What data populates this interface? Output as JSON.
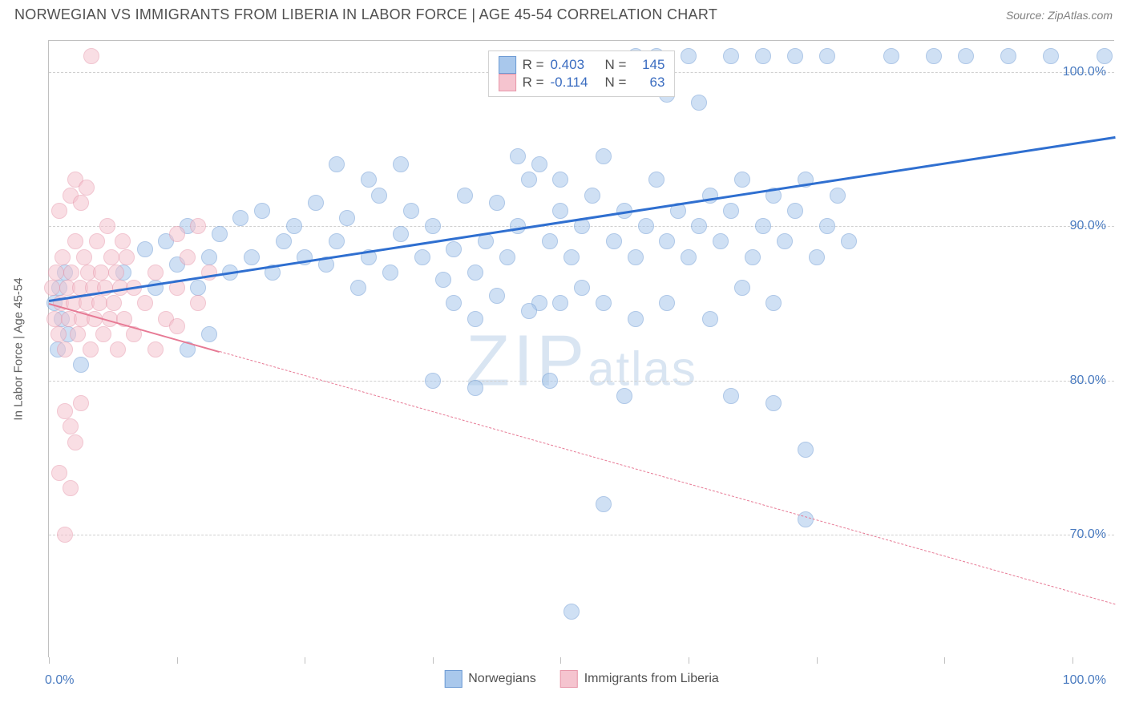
{
  "header": {
    "title": "NORWEGIAN VS IMMIGRANTS FROM LIBERIA IN LABOR FORCE | AGE 45-54 CORRELATION CHART",
    "source_label": "Source",
    "source_name": "ZipAtlas.com"
  },
  "chart": {
    "type": "scatter",
    "ylabel": "In Labor Force | Age 45-54",
    "xlim": [
      0,
      100
    ],
    "ylim": [
      62,
      102
    ],
    "watermark_main": "ZIP",
    "watermark_sub": "atlas",
    "background_color": "#ffffff",
    "grid_color": "#d0d0d0",
    "axis_color": "#c0c0c0",
    "tick_label_color": "#4a7bc0",
    "tick_fontsize": 16,
    "ylabel_fontsize": 15,
    "ylabel_color": "#606060",
    "yticks": [
      {
        "v": 70,
        "label": "70.0%"
      },
      {
        "v": 80,
        "label": "80.0%"
      },
      {
        "v": 90,
        "label": "90.0%"
      },
      {
        "v": 100,
        "label": "100.0%"
      }
    ],
    "xticks_pos": [
      0,
      12,
      24,
      36,
      48,
      60,
      72,
      84,
      96
    ],
    "xlimit_left": "0.0%",
    "xlimit_right": "100.0%",
    "marker_radius": 10,
    "marker_opacity": 0.55,
    "series": [
      {
        "key": "norwegians",
        "label": "Norwegians",
        "fill": "#a9c8ec",
        "stroke": "#6d9bd4",
        "trend_color": "#2f6fd0",
        "trend_width": 2.5,
        "trend_dashed_after_x": 100,
        "r": "0.403",
        "n": "145",
        "trend": {
          "x1": 0,
          "y1": 85.2,
          "x2": 100,
          "y2": 95.8
        },
        "points": [
          {
            "x": 0.5,
            "y": 85
          },
          {
            "x": 0.8,
            "y": 82
          },
          {
            "x": 1,
            "y": 86
          },
          {
            "x": 1.2,
            "y": 84
          },
          {
            "x": 1.5,
            "y": 87
          },
          {
            "x": 1.8,
            "y": 83
          },
          {
            "x": 55,
            "y": 101
          },
          {
            "x": 57,
            "y": 101
          },
          {
            "x": 60,
            "y": 101
          },
          {
            "x": 64,
            "y": 101
          },
          {
            "x": 67,
            "y": 101
          },
          {
            "x": 70,
            "y": 101
          },
          {
            "x": 73,
            "y": 101
          },
          {
            "x": 79,
            "y": 101
          },
          {
            "x": 83,
            "y": 101
          },
          {
            "x": 86,
            "y": 101
          },
          {
            "x": 90,
            "y": 101
          },
          {
            "x": 94,
            "y": 101
          },
          {
            "x": 99,
            "y": 101
          },
          {
            "x": 58,
            "y": 98.5
          },
          {
            "x": 61,
            "y": 98
          },
          {
            "x": 7,
            "y": 87
          },
          {
            "x": 9,
            "y": 88.5
          },
          {
            "x": 10,
            "y": 86
          },
          {
            "x": 11,
            "y": 89
          },
          {
            "x": 12,
            "y": 87.5
          },
          {
            "x": 13,
            "y": 90
          },
          {
            "x": 14,
            "y": 86
          },
          {
            "x": 15,
            "y": 88
          },
          {
            "x": 16,
            "y": 89.5
          },
          {
            "x": 17,
            "y": 87
          },
          {
            "x": 18,
            "y": 90.5
          },
          {
            "x": 19,
            "y": 88
          },
          {
            "x": 20,
            "y": 91
          },
          {
            "x": 21,
            "y": 87
          },
          {
            "x": 22,
            "y": 89
          },
          {
            "x": 23,
            "y": 90
          },
          {
            "x": 24,
            "y": 88
          },
          {
            "x": 25,
            "y": 91.5
          },
          {
            "x": 26,
            "y": 87.5
          },
          {
            "x": 27,
            "y": 89
          },
          {
            "x": 28,
            "y": 90.5
          },
          {
            "x": 29,
            "y": 86
          },
          {
            "x": 30,
            "y": 88
          },
          {
            "x": 31,
            "y": 92
          },
          {
            "x": 32,
            "y": 87
          },
          {
            "x": 33,
            "y": 89.5
          },
          {
            "x": 34,
            "y": 91
          },
          {
            "x": 35,
            "y": 88
          },
          {
            "x": 36,
            "y": 90
          },
          {
            "x": 37,
            "y": 86.5
          },
          {
            "x": 27,
            "y": 94
          },
          {
            "x": 30,
            "y": 93
          },
          {
            "x": 33,
            "y": 94
          },
          {
            "x": 38,
            "y": 88.5
          },
          {
            "x": 39,
            "y": 92
          },
          {
            "x": 40,
            "y": 87
          },
          {
            "x": 41,
            "y": 89
          },
          {
            "x": 42,
            "y": 91.5
          },
          {
            "x": 43,
            "y": 88
          },
          {
            "x": 44,
            "y": 90
          },
          {
            "x": 45,
            "y": 93
          },
          {
            "x": 46,
            "y": 85
          },
          {
            "x": 44,
            "y": 94.5
          },
          {
            "x": 46,
            "y": 94
          },
          {
            "x": 48,
            "y": 93
          },
          {
            "x": 38,
            "y": 85
          },
          {
            "x": 40,
            "y": 84
          },
          {
            "x": 42,
            "y": 85.5
          },
          {
            "x": 45,
            "y": 84.5
          },
          {
            "x": 48,
            "y": 85
          },
          {
            "x": 50,
            "y": 86
          },
          {
            "x": 52,
            "y": 85
          },
          {
            "x": 55,
            "y": 84
          },
          {
            "x": 47,
            "y": 89
          },
          {
            "x": 48,
            "y": 91
          },
          {
            "x": 49,
            "y": 88
          },
          {
            "x": 50,
            "y": 90
          },
          {
            "x": 51,
            "y": 92
          },
          {
            "x": 52,
            "y": 94.5
          },
          {
            "x": 53,
            "y": 89
          },
          {
            "x": 54,
            "y": 91
          },
          {
            "x": 55,
            "y": 88
          },
          {
            "x": 36,
            "y": 80
          },
          {
            "x": 40,
            "y": 79.5
          },
          {
            "x": 47,
            "y": 80
          },
          {
            "x": 56,
            "y": 90
          },
          {
            "x": 57,
            "y": 93
          },
          {
            "x": 58,
            "y": 89
          },
          {
            "x": 59,
            "y": 91
          },
          {
            "x": 60,
            "y": 88
          },
          {
            "x": 61,
            "y": 90
          },
          {
            "x": 58,
            "y": 85
          },
          {
            "x": 62,
            "y": 84
          },
          {
            "x": 65,
            "y": 86
          },
          {
            "x": 68,
            "y": 85
          },
          {
            "x": 62,
            "y": 92
          },
          {
            "x": 63,
            "y": 89
          },
          {
            "x": 64,
            "y": 91
          },
          {
            "x": 65,
            "y": 93
          },
          {
            "x": 66,
            "y": 88
          },
          {
            "x": 67,
            "y": 90
          },
          {
            "x": 68,
            "y": 92
          },
          {
            "x": 69,
            "y": 89
          },
          {
            "x": 70,
            "y": 91
          },
          {
            "x": 71,
            "y": 93
          },
          {
            "x": 72,
            "y": 88
          },
          {
            "x": 73,
            "y": 90
          },
          {
            "x": 74,
            "y": 92
          },
          {
            "x": 75,
            "y": 89
          },
          {
            "x": 52,
            "y": 72
          },
          {
            "x": 54,
            "y": 79
          },
          {
            "x": 64,
            "y": 79
          },
          {
            "x": 68,
            "y": 78.5
          },
          {
            "x": 71,
            "y": 75.5
          },
          {
            "x": 71,
            "y": 71
          },
          {
            "x": 49,
            "y": 65
          },
          {
            "x": 13,
            "y": 82
          },
          {
            "x": 15,
            "y": 83
          },
          {
            "x": 3,
            "y": 81
          }
        ]
      },
      {
        "key": "liberia",
        "label": "Immigrants from Liberia",
        "fill": "#f5c4cf",
        "stroke": "#e797aa",
        "trend_color": "#e77a95",
        "trend_width": 2,
        "trend_dashed_after_x": 16,
        "r": "-0.114",
        "n": "63",
        "trend": {
          "x1": 0,
          "y1": 85.0,
          "x2": 100,
          "y2": 65.5
        },
        "points": [
          {
            "x": 0.3,
            "y": 86
          },
          {
            "x": 0.5,
            "y": 84
          },
          {
            "x": 0.7,
            "y": 87
          },
          {
            "x": 0.9,
            "y": 83
          },
          {
            "x": 1.1,
            "y": 85
          },
          {
            "x": 1.3,
            "y": 88
          },
          {
            "x": 1.5,
            "y": 82
          },
          {
            "x": 1.7,
            "y": 86
          },
          {
            "x": 1.9,
            "y": 84
          },
          {
            "x": 2.1,
            "y": 87
          },
          {
            "x": 2.3,
            "y": 85
          },
          {
            "x": 2.5,
            "y": 89
          },
          {
            "x": 2.7,
            "y": 83
          },
          {
            "x": 2.9,
            "y": 86
          },
          {
            "x": 3.1,
            "y": 84
          },
          {
            "x": 3.3,
            "y": 88
          },
          {
            "x": 3.5,
            "y": 85
          },
          {
            "x": 3.7,
            "y": 87
          },
          {
            "x": 3.9,
            "y": 82
          },
          {
            "x": 4.1,
            "y": 86
          },
          {
            "x": 4.3,
            "y": 84
          },
          {
            "x": 4.5,
            "y": 89
          },
          {
            "x": 4.7,
            "y": 85
          },
          {
            "x": 4.9,
            "y": 87
          },
          {
            "x": 5.1,
            "y": 83
          },
          {
            "x": 5.3,
            "y": 86
          },
          {
            "x": 5.5,
            "y": 90
          },
          {
            "x": 5.7,
            "y": 84
          },
          {
            "x": 5.9,
            "y": 88
          },
          {
            "x": 6.1,
            "y": 85
          },
          {
            "x": 6.3,
            "y": 87
          },
          {
            "x": 6.5,
            "y": 82
          },
          {
            "x": 6.7,
            "y": 86
          },
          {
            "x": 6.9,
            "y": 89
          },
          {
            "x": 7.1,
            "y": 84
          },
          {
            "x": 7.3,
            "y": 88
          },
          {
            "x": 1,
            "y": 91
          },
          {
            "x": 2,
            "y": 92
          },
          {
            "x": 3,
            "y": 91.5
          },
          {
            "x": 2.5,
            "y": 93
          },
          {
            "x": 3.5,
            "y": 92.5
          },
          {
            "x": 1.5,
            "y": 78
          },
          {
            "x": 2,
            "y": 77
          },
          {
            "x": 2.5,
            "y": 76
          },
          {
            "x": 3,
            "y": 78.5
          },
          {
            "x": 1,
            "y": 74
          },
          {
            "x": 2,
            "y": 73
          },
          {
            "x": 1.5,
            "y": 70
          },
          {
            "x": 4,
            "y": 101
          },
          {
            "x": 8,
            "y": 86
          },
          {
            "x": 9,
            "y": 85
          },
          {
            "x": 10,
            "y": 87
          },
          {
            "x": 11,
            "y": 84
          },
          {
            "x": 12,
            "y": 86
          },
          {
            "x": 13,
            "y": 88
          },
          {
            "x": 14,
            "y": 85
          },
          {
            "x": 15,
            "y": 87
          },
          {
            "x": 12,
            "y": 89.5
          },
          {
            "x": 14,
            "y": 90
          },
          {
            "x": 8,
            "y": 83
          },
          {
            "x": 10,
            "y": 82
          },
          {
            "x": 12,
            "y": 83.5
          }
        ]
      }
    ]
  },
  "legend_top": {
    "r_label": "R =",
    "n_label": "N ="
  },
  "legend_bottom_items": [
    "norwegians",
    "liberia"
  ]
}
